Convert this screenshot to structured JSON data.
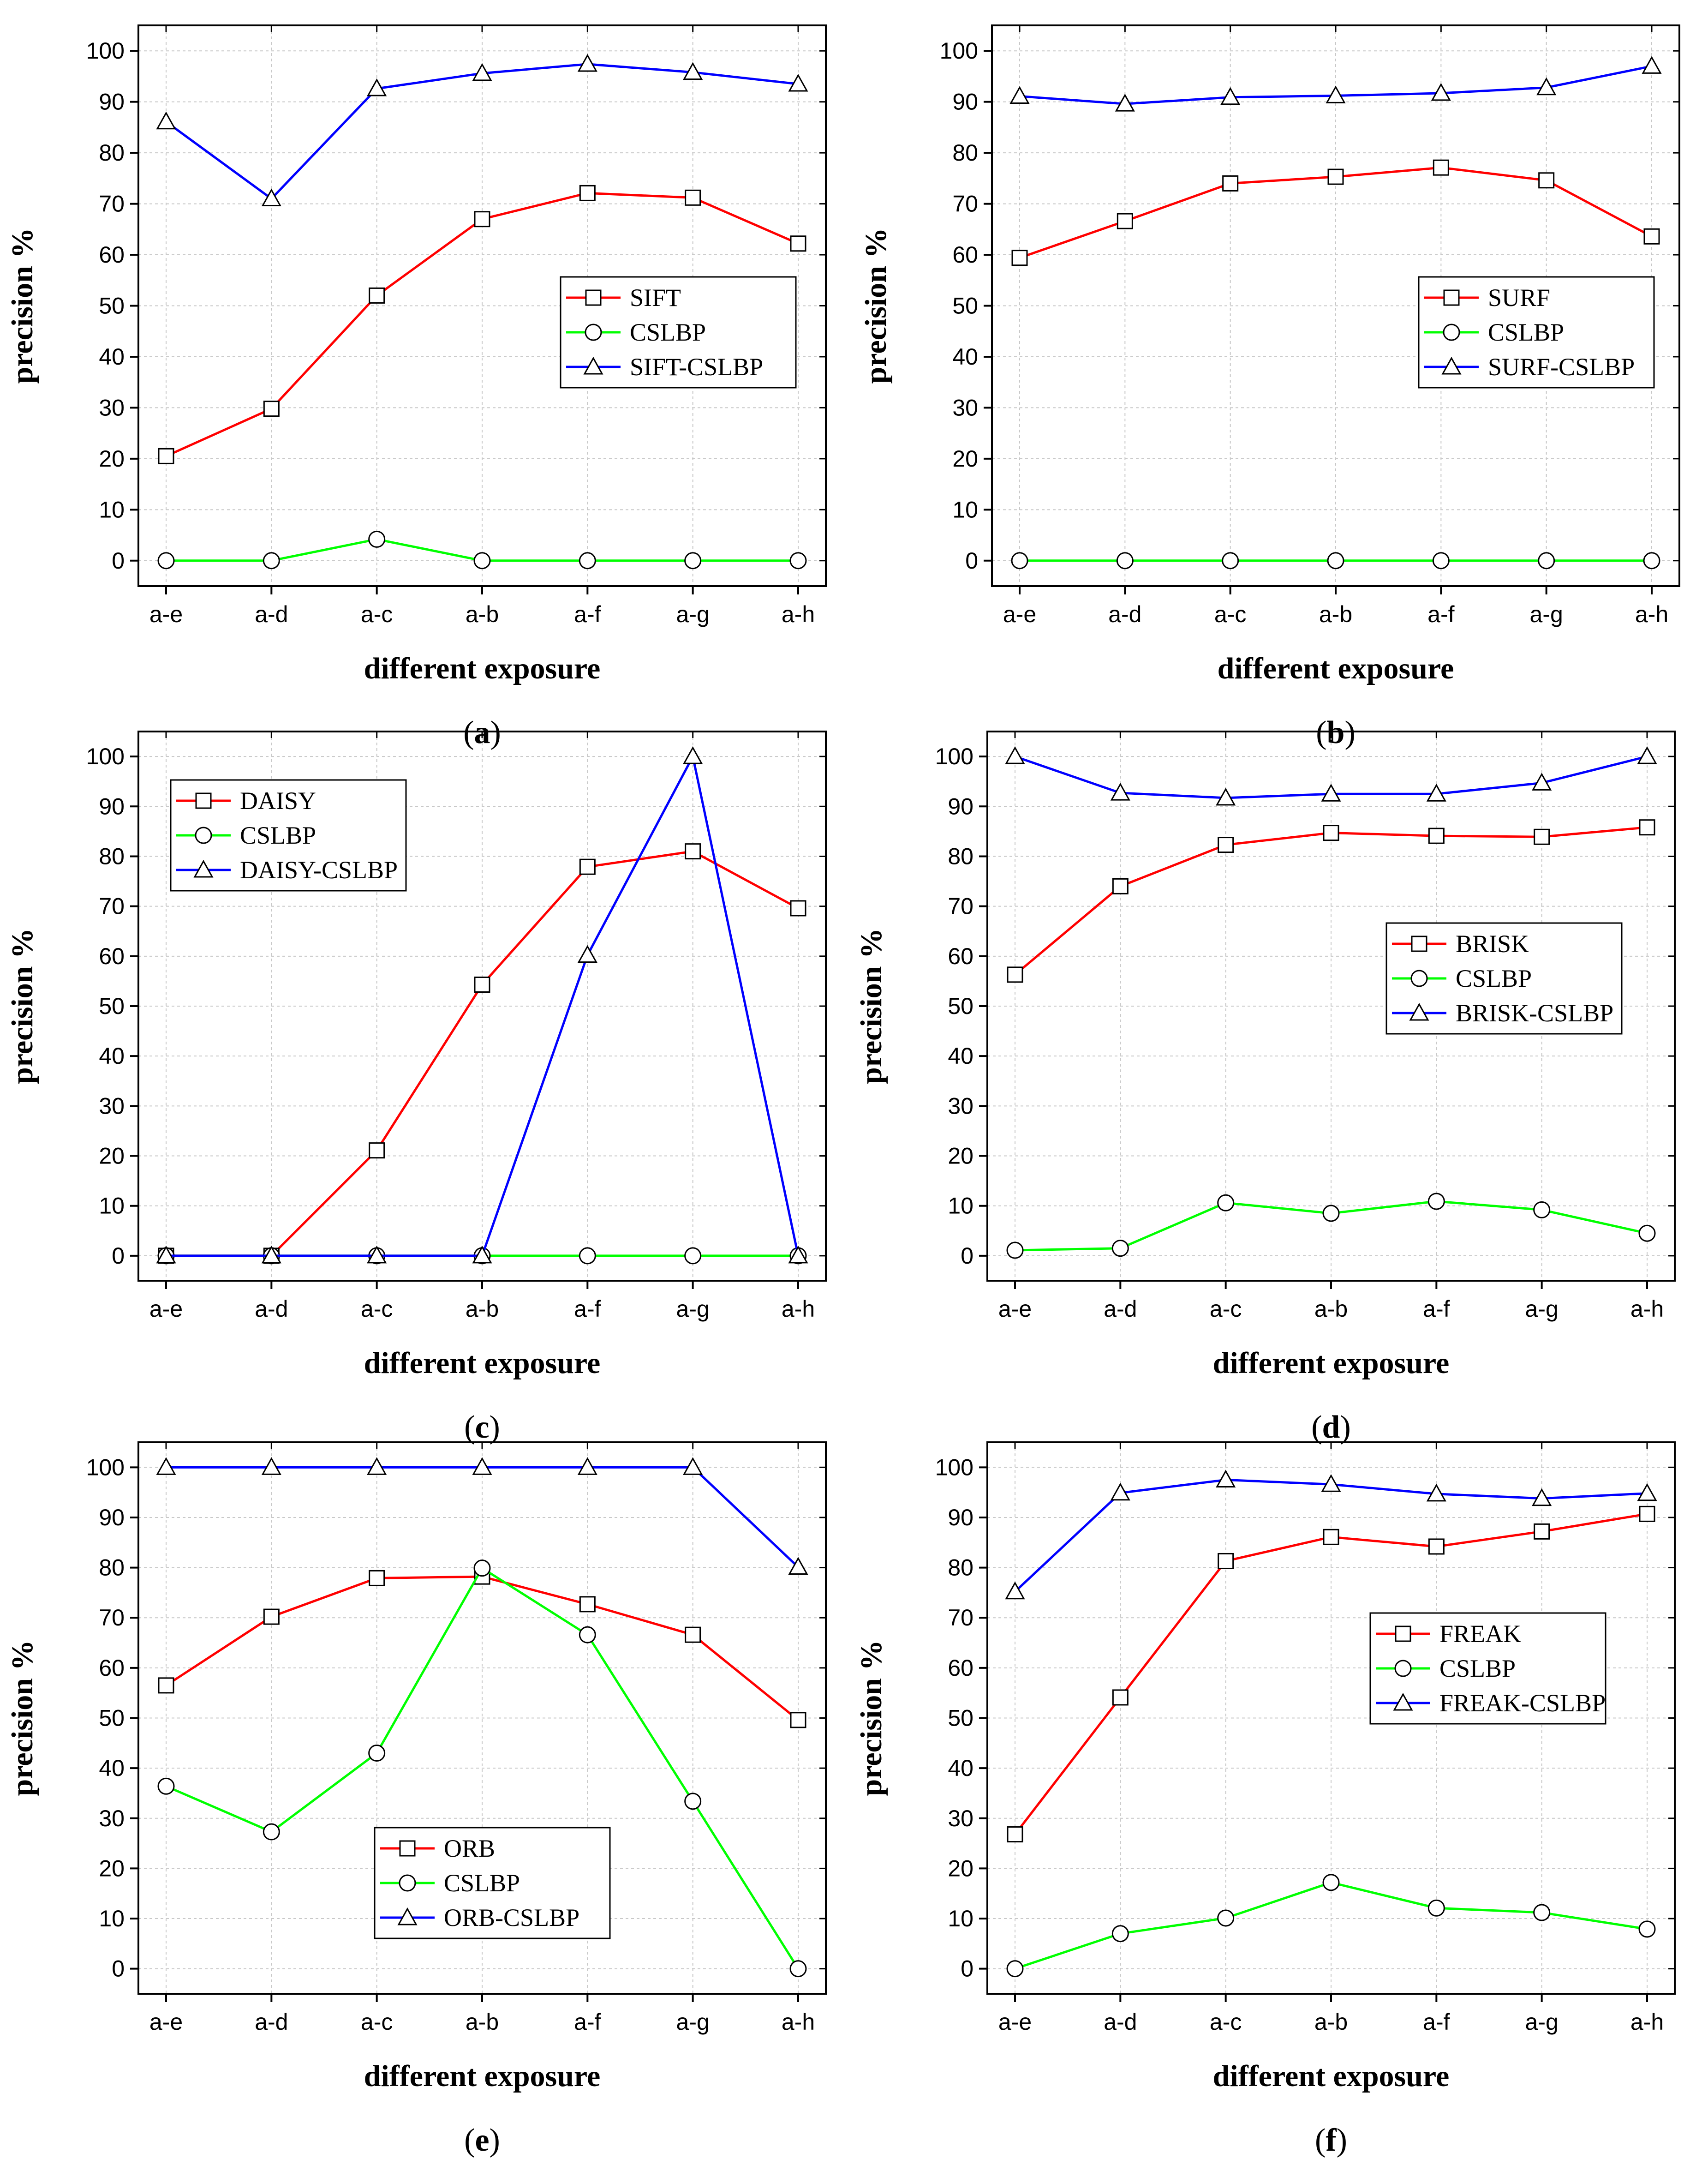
{
  "chart_data": [
    {
      "type": "line",
      "panel_label": "a",
      "categories": [
        "a-e",
        "a-d",
        "a-c",
        "a-b",
        "a-f",
        "a-g",
        "a-h"
      ],
      "series": [
        {
          "name": "SIFT",
          "color": "#ff0000",
          "marker": "square",
          "values": [
            20.5,
            29.8,
            52,
            67,
            72.1,
            71.2,
            62.2
          ]
        },
        {
          "name": "CSLBP",
          "color": "#00ff00",
          "marker": "circle",
          "values": [
            0,
            0,
            4.2,
            0,
            0,
            0,
            0
          ]
        },
        {
          "name": "SIFT-CSLBP",
          "color": "#0000ff",
          "marker": "triangle",
          "values": [
            86.1,
            71,
            92.6,
            95.6,
            97.4,
            95.8,
            93.5
          ]
        }
      ],
      "xlabel": "different exposure",
      "ylabel": "precision %",
      "ylim": [
        -5,
        105
      ],
      "yticks": [
        0,
        10,
        20,
        30,
        40,
        50,
        60,
        70,
        80,
        90,
        100
      ],
      "grid": true,
      "legend_position": "center-right"
    },
    {
      "type": "line",
      "panel_label": "b",
      "categories": [
        "a-e",
        "a-d",
        "a-c",
        "a-b",
        "a-f",
        "a-g",
        "a-h"
      ],
      "series": [
        {
          "name": "SURF",
          "color": "#ff0000",
          "marker": "square",
          "values": [
            59.4,
            66.6,
            74,
            75.3,
            77.1,
            74.6,
            63.6
          ]
        },
        {
          "name": "CSLBP",
          "color": "#00ff00",
          "marker": "circle",
          "values": [
            0,
            0,
            0,
            0,
            0,
            0,
            0
          ]
        },
        {
          "name": "SURF-CSLBP",
          "color": "#0000ff",
          "marker": "triangle",
          "values": [
            91.1,
            89.6,
            90.9,
            91.2,
            91.7,
            92.8,
            97
          ]
        }
      ],
      "xlabel": "different exposure",
      "ylabel": "precision %",
      "ylim": [
        -5,
        105
      ],
      "yticks": [
        0,
        10,
        20,
        30,
        40,
        50,
        60,
        70,
        80,
        90,
        100
      ],
      "grid": true,
      "legend_position": "center-right"
    },
    {
      "type": "line",
      "panel_label": "c",
      "categories": [
        "a-e",
        "a-d",
        "a-c",
        "a-b",
        "a-f",
        "a-g",
        "a-h"
      ],
      "series": [
        {
          "name": "DAISY",
          "color": "#ff0000",
          "marker": "square",
          "values": [
            0,
            0,
            21.1,
            54.3,
            77.9,
            81,
            69.6
          ]
        },
        {
          "name": "CSLBP",
          "color": "#00ff00",
          "marker": "circle",
          "values": [
            0,
            0,
            0,
            0,
            0,
            0,
            0
          ]
        },
        {
          "name": "DAISY-CSLBP",
          "color": "#0000ff",
          "marker": "triangle",
          "values": [
            0,
            0,
            0,
            0,
            60.2,
            100,
            0
          ]
        }
      ],
      "xlabel": "different exposure",
      "ylabel": "precision %",
      "ylim": [
        -5,
        105
      ],
      "yticks": [
        0,
        10,
        20,
        30,
        40,
        50,
        60,
        70,
        80,
        90,
        100
      ],
      "grid": true,
      "legend_position": "top-left"
    },
    {
      "type": "line",
      "panel_label": "d",
      "categories": [
        "a-e",
        "a-d",
        "a-c",
        "a-b",
        "a-f",
        "a-g",
        "a-h"
      ],
      "series": [
        {
          "name": "BRISK",
          "color": "#ff0000",
          "marker": "square",
          "values": [
            56.3,
            74,
            82.3,
            84.7,
            84.1,
            83.9,
            85.8
          ]
        },
        {
          "name": "CSLBP",
          "color": "#00ff00",
          "marker": "circle",
          "values": [
            1.1,
            1.5,
            10.6,
            8.5,
            10.9,
            9.2,
            4.5
          ]
        },
        {
          "name": "BRISK-CSLBP",
          "color": "#0000ff",
          "marker": "triangle",
          "values": [
            100,
            92.7,
            91.7,
            92.5,
            92.5,
            94.7,
            100
          ]
        }
      ],
      "xlabel": "different exposure",
      "ylabel": "precision %",
      "ylim": [
        -5,
        105
      ],
      "yticks": [
        0,
        10,
        20,
        30,
        40,
        50,
        60,
        70,
        80,
        90,
        100
      ],
      "grid": true,
      "legend_position": "center-right"
    },
    {
      "type": "line",
      "panel_label": "e",
      "categories": [
        "a-e",
        "a-d",
        "a-c",
        "a-b",
        "a-f",
        "a-g",
        "a-h"
      ],
      "series": [
        {
          "name": "ORB",
          "color": "#ff0000",
          "marker": "square",
          "values": [
            56.5,
            70.2,
            77.9,
            78.2,
            72.7,
            66.6,
            49.6
          ]
        },
        {
          "name": "CSLBP",
          "color": "#00ff00",
          "marker": "circle",
          "values": [
            36.4,
            27.3,
            43,
            79.9,
            66.6,
            33.4,
            0
          ]
        },
        {
          "name": "ORB-CSLBP",
          "color": "#0000ff",
          "marker": "triangle",
          "values": [
            100,
            100,
            100,
            100,
            100,
            100,
            80.1
          ]
        }
      ],
      "xlabel": "different exposure",
      "ylabel": "precision %",
      "ylim": [
        -5,
        105
      ],
      "yticks": [
        0,
        10,
        20,
        30,
        40,
        50,
        60,
        70,
        80,
        90,
        100
      ],
      "grid": true,
      "legend_position": "bottom-center"
    },
    {
      "type": "line",
      "panel_label": "f",
      "categories": [
        "a-e",
        "a-d",
        "a-c",
        "a-b",
        "a-f",
        "a-g",
        "a-h"
      ],
      "series": [
        {
          "name": "FREAK",
          "color": "#ff0000",
          "marker": "square",
          "values": [
            26.8,
            54.1,
            81.3,
            86.1,
            84.2,
            87.2,
            90.7
          ]
        },
        {
          "name": "CSLBP",
          "color": "#00ff00",
          "marker": "circle",
          "values": [
            0,
            7,
            10.1,
            17.2,
            12.1,
            11.2,
            7.9
          ]
        },
        {
          "name": "FREAK-CSLBP",
          "color": "#0000ff",
          "marker": "triangle",
          "values": [
            75.2,
            94.9,
            97.5,
            96.6,
            94.7,
            93.8,
            94.8
          ]
        }
      ],
      "xlabel": "different exposure",
      "ylabel": "precision %",
      "ylim": [
        -5,
        105
      ],
      "yticks": [
        0,
        10,
        20,
        30,
        40,
        50,
        60,
        70,
        80,
        90,
        100
      ],
      "grid": true,
      "legend_position": "center-right"
    }
  ]
}
